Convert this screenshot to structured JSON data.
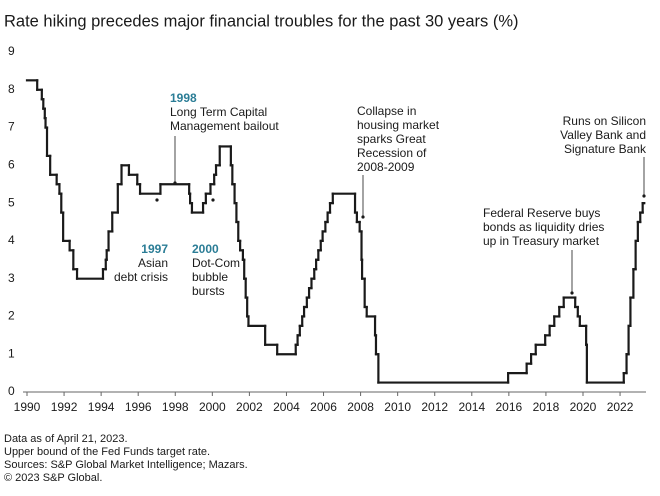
{
  "chart_data": {
    "type": "line",
    "step": "post",
    "title": "Rate hiking precedes major financial troubles for the past 30 years (%)",
    "color": "#1a1a1a",
    "annotation_color": "#2b7d96",
    "x": [
      1990.0,
      1990.55,
      1990.8,
      1990.88,
      1990.96,
      1991.0,
      1991.08,
      1991.25,
      1991.6,
      1991.75,
      1991.85,
      1991.95,
      1992.3,
      1992.5,
      1992.7,
      1994.1,
      1994.25,
      1994.3,
      1994.4,
      1994.6,
      1994.9,
      1995.1,
      1995.5,
      1995.95,
      1996.1,
      1997.2,
      1998.75,
      1998.8,
      1998.9,
      1999.5,
      1999.65,
      1999.9,
      2000.1,
      2000.2,
      2000.4,
      2001.0,
      2001.08,
      2001.2,
      2001.3,
      2001.4,
      2001.5,
      2001.65,
      2001.72,
      2001.8,
      2001.88,
      2001.95,
      2002.85,
      2003.5,
      2004.5,
      2004.6,
      2004.72,
      2004.85,
      2004.95,
      2005.1,
      2005.22,
      2005.35,
      2005.5,
      2005.6,
      2005.72,
      2005.85,
      2005.95,
      2006.1,
      2006.22,
      2006.35,
      2006.5,
      2007.7,
      2007.8,
      2007.95,
      2008.05,
      2008.08,
      2008.22,
      2008.33,
      2008.78,
      2008.83,
      2008.96,
      2015.96,
      2016.96,
      2017.2,
      2017.45,
      2017.96,
      2018.2,
      2018.45,
      2018.72,
      2018.96,
      2019.58,
      2019.72,
      2019.83,
      2020.17,
      2020.21,
      2022.2,
      2022.35,
      2022.46,
      2022.56,
      2022.72,
      2022.84,
      2022.96,
      2023.09,
      2023.22,
      2023.3
    ],
    "values": [
      8.25,
      8.0,
      7.75,
      7.5,
      7.25,
      7.0,
      6.25,
      5.75,
      5.5,
      5.25,
      4.75,
      4.0,
      3.75,
      3.25,
      3.0,
      3.25,
      3.5,
      3.75,
      4.25,
      4.75,
      5.5,
      6.0,
      5.75,
      5.5,
      5.25,
      5.5,
      5.25,
      5.0,
      4.75,
      5.0,
      5.25,
      5.5,
      5.75,
      6.0,
      6.5,
      6.0,
      5.5,
      5.0,
      4.5,
      4.0,
      3.75,
      3.5,
      3.0,
      2.5,
      2.0,
      1.75,
      1.25,
      1.0,
      1.25,
      1.5,
      1.75,
      2.0,
      2.25,
      2.5,
      2.75,
      3.0,
      3.25,
      3.5,
      3.75,
      4.0,
      4.25,
      4.5,
      4.75,
      5.0,
      5.25,
      4.75,
      4.5,
      4.25,
      3.5,
      3.0,
      2.25,
      2.0,
      1.5,
      1.0,
      0.25,
      0.5,
      0.75,
      1.0,
      1.25,
      1.5,
      1.75,
      2.0,
      2.25,
      2.5,
      2.25,
      2.0,
      1.75,
      1.25,
      0.25,
      0.5,
      1.0,
      1.75,
      2.5,
      3.25,
      4.0,
      4.5,
      4.75,
      5.0,
      5.0
    ],
    "xlim": [
      1990,
      2023.4
    ],
    "xticks": [
      1990,
      1992,
      1994,
      1996,
      1998,
      2000,
      2002,
      2004,
      2006,
      2008,
      2010,
      2012,
      2014,
      2016,
      2018,
      2020,
      2022
    ],
    "ylim": [
      0,
      9
    ],
    "yticks": [
      0,
      1,
      2,
      3,
      4,
      5,
      6,
      7,
      8,
      9
    ],
    "annotations": [
      {
        "year": "1997",
        "lines": [
          "Asian",
          "debt crisis"
        ]
      },
      {
        "year": "1998",
        "lines": [
          "Long Term Capital",
          "Management bailout"
        ]
      },
      {
        "year": "2000",
        "lines": [
          "Dot-Com",
          "bubble",
          "bursts"
        ]
      },
      {
        "lines": [
          "Collapse in",
          "housing market",
          "sparks Great",
          "Recession of",
          "2008-2009"
        ]
      },
      {
        "lines": [
          "Federal Reserve buys",
          "bonds as liquidity dries",
          "up in Treasury market"
        ]
      },
      {
        "lines": [
          "Runs on Silicon",
          "Valley Bank and",
          "Signature Bank"
        ]
      }
    ],
    "footnotes": [
      "Data as of April 21, 2023.",
      "Upper bound of the Fed Funds target rate.",
      "Sources: S&P Global Market Intelligence; Mazars.",
      "© 2023 S&P Global."
    ]
  }
}
